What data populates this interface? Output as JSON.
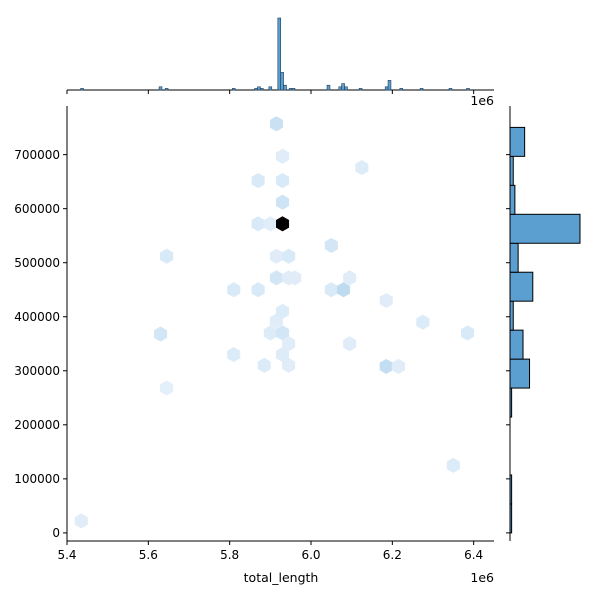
{
  "chart_data": {
    "type": "hexbin-joint",
    "xlabel": "total_length",
    "ylabel": "",
    "x_offset_label": "1e6",
    "top_offset_label": "1e6",
    "xlim": [
      5.4,
      6.45
    ],
    "ylim": [
      -15000,
      790000
    ],
    "x_ticks": [
      5.4,
      5.6,
      5.8,
      6.0,
      6.2,
      6.4
    ],
    "x_tick_labels": [
      "5.4",
      "5.6",
      "5.8",
      "6.0",
      "6.2",
      "6.4"
    ],
    "y_ticks": [
      0,
      100000,
      200000,
      300000,
      400000,
      500000,
      600000,
      700000
    ],
    "y_tick_labels": [
      "0",
      "100000",
      "200000",
      "300000",
      "400000",
      "500000",
      "600000",
      "700000"
    ],
    "x_scale": 1000000,
    "colors": {
      "bar": "#5b9fd0",
      "bar_edge": "#1f3a55",
      "hex_light": "#e8f2fb",
      "hex_mid": "#b9d8ef",
      "hex_dark": "#000000"
    },
    "hexbins": [
      {
        "x": 5.435,
        "y": 22000,
        "level": 0.08
      },
      {
        "x": 5.63,
        "y": 368000,
        "level": 0.2
      },
      {
        "x": 5.645,
        "y": 512000,
        "level": 0.15
      },
      {
        "x": 5.645,
        "y": 268000,
        "level": 0.05
      },
      {
        "x": 5.81,
        "y": 450000,
        "level": 0.15
      },
      {
        "x": 5.81,
        "y": 330000,
        "level": 0.12
      },
      {
        "x": 5.87,
        "y": 652000,
        "level": 0.15
      },
      {
        "x": 5.87,
        "y": 572000,
        "level": 0.15
      },
      {
        "x": 5.87,
        "y": 450000,
        "level": 0.15
      },
      {
        "x": 5.885,
        "y": 310000,
        "level": 0.12
      },
      {
        "x": 5.9,
        "y": 572000,
        "level": 0.08
      },
      {
        "x": 5.9,
        "y": 370000,
        "level": 0.1
      },
      {
        "x": 5.915,
        "y": 757000,
        "level": 0.3
      },
      {
        "x": 5.915,
        "y": 512000,
        "level": 0.08
      },
      {
        "x": 5.915,
        "y": 472000,
        "level": 0.2
      },
      {
        "x": 5.915,
        "y": 392000,
        "level": 0.08
      },
      {
        "x": 5.93,
        "y": 697000,
        "level": 0.08
      },
      {
        "x": 5.93,
        "y": 652000,
        "level": 0.15
      },
      {
        "x": 5.93,
        "y": 612000,
        "level": 0.25
      },
      {
        "x": 5.93,
        "y": 572000,
        "level": 1.0
      },
      {
        "x": 5.93,
        "y": 410000,
        "level": 0.12
      },
      {
        "x": 5.93,
        "y": 370000,
        "level": 0.2
      },
      {
        "x": 5.93,
        "y": 330000,
        "level": 0.1
      },
      {
        "x": 5.945,
        "y": 512000,
        "level": 0.15
      },
      {
        "x": 5.945,
        "y": 472000,
        "level": 0.08
      },
      {
        "x": 5.945,
        "y": 350000,
        "level": 0.08
      },
      {
        "x": 5.945,
        "y": 310000,
        "level": 0.08
      },
      {
        "x": 5.96,
        "y": 472000,
        "level": 0.08
      },
      {
        "x": 6.05,
        "y": 532000,
        "level": 0.2
      },
      {
        "x": 6.05,
        "y": 450000,
        "level": 0.15
      },
      {
        "x": 6.08,
        "y": 450000,
        "level": 0.4
      },
      {
        "x": 6.095,
        "y": 472000,
        "level": 0.08
      },
      {
        "x": 6.095,
        "y": 350000,
        "level": 0.08
      },
      {
        "x": 6.125,
        "y": 676000,
        "level": 0.1
      },
      {
        "x": 6.185,
        "y": 430000,
        "level": 0.08
      },
      {
        "x": 6.185,
        "y": 308000,
        "level": 0.35
      },
      {
        "x": 6.215,
        "y": 308000,
        "level": 0.08
      },
      {
        "x": 6.275,
        "y": 390000,
        "level": 0.12
      },
      {
        "x": 6.35,
        "y": 125000,
        "level": 0.12
      },
      {
        "x": 6.385,
        "y": 370000,
        "level": 0.15
      }
    ],
    "top_histogram": {
      "bin_width": 0.00713,
      "bars": [
        {
          "x": 5.437,
          "count": 1
        },
        {
          "x": 5.63,
          "count": 2
        },
        {
          "x": 5.645,
          "count": 1
        },
        {
          "x": 5.81,
          "count": 1
        },
        {
          "x": 5.865,
          "count": 1
        },
        {
          "x": 5.872,
          "count": 2
        },
        {
          "x": 5.879,
          "count": 1
        },
        {
          "x": 5.9,
          "count": 2
        },
        {
          "x": 5.922,
          "count": 45
        },
        {
          "x": 5.929,
          "count": 11
        },
        {
          "x": 5.936,
          "count": 3
        },
        {
          "x": 5.95,
          "count": 1
        },
        {
          "x": 5.957,
          "count": 1
        },
        {
          "x": 6.043,
          "count": 3
        },
        {
          "x": 6.072,
          "count": 2
        },
        {
          "x": 6.079,
          "count": 4
        },
        {
          "x": 6.086,
          "count": 2
        },
        {
          "x": 6.122,
          "count": 1
        },
        {
          "x": 6.186,
          "count": 2
        },
        {
          "x": 6.193,
          "count": 6
        },
        {
          "x": 6.222,
          "count": 1
        },
        {
          "x": 6.272,
          "count": 1
        },
        {
          "x": 6.343,
          "count": 1
        },
        {
          "x": 6.386,
          "count": 1
        }
      ]
    },
    "right_histogram": {
      "bin_width": 53600,
      "bars": [
        {
          "y0": 0,
          "y1": 53600,
          "count": 1
        },
        {
          "y0": 53600,
          "y1": 107200,
          "count": 1
        },
        {
          "y0": 214400,
          "y1": 268000,
          "count": 1
        },
        {
          "y0": 268000,
          "y1": 321600,
          "count": 12
        },
        {
          "y0": 321600,
          "y1": 375200,
          "count": 8
        },
        {
          "y0": 375200,
          "y1": 428800,
          "count": 2
        },
        {
          "y0": 428800,
          "y1": 482400,
          "count": 14
        },
        {
          "y0": 482400,
          "y1": 536000,
          "count": 5
        },
        {
          "y0": 536000,
          "y1": 589600,
          "count": 43
        },
        {
          "y0": 589600,
          "y1": 643200,
          "count": 3
        },
        {
          "y0": 643200,
          "y1": 696800,
          "count": 2
        },
        {
          "y0": 696800,
          "y1": 750400,
          "count": 9
        }
      ]
    }
  }
}
